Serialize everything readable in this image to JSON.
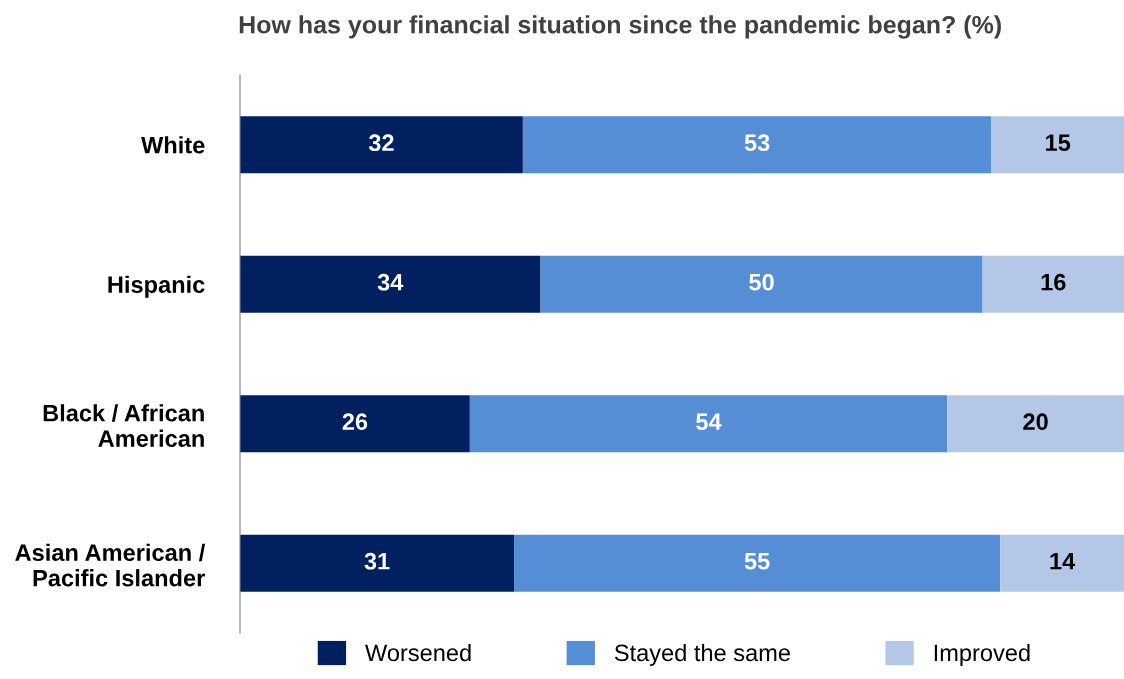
{
  "chart_data": {
    "type": "bar",
    "orientation": "horizontal",
    "stacked": true,
    "title": "How has your financial situation since the pandemic began? (%)",
    "categories": [
      "White",
      "Hispanic",
      "Black / African\nAmerican",
      "Asian American /\nPacific Islander"
    ],
    "series": [
      {
        "name": "Worsened",
        "color": "#002060",
        "values": [
          32,
          34,
          26,
          31
        ]
      },
      {
        "name": "Stayed the same",
        "color": "#558ed5",
        "values": [
          53,
          50,
          54,
          55
        ]
      },
      {
        "name": "Improved",
        "color": "#b4c7e7",
        "values": [
          15,
          16,
          20,
          14
        ]
      }
    ],
    "data_labels": true,
    "legend": "bottom",
    "grid": false,
    "tick_labels": "y"
  }
}
